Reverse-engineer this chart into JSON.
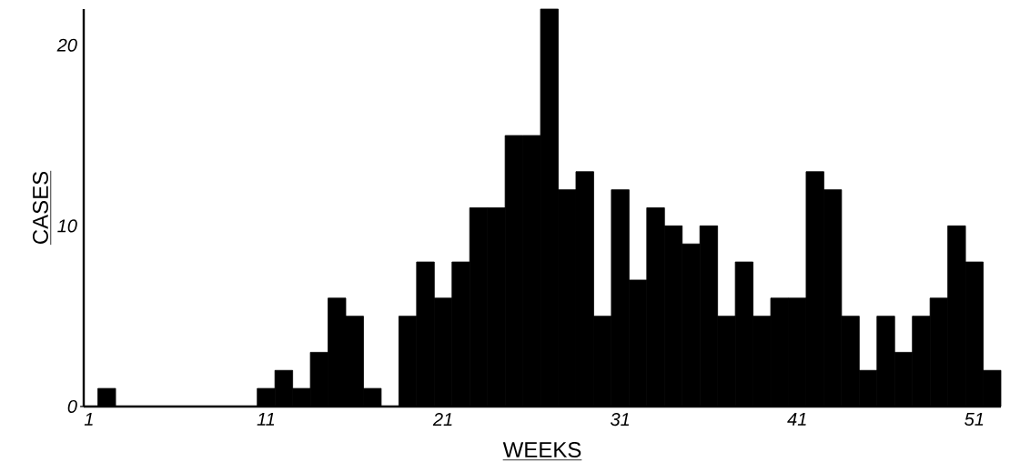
{
  "chart_data": {
    "type": "histogram",
    "xlabel": "WEEKS",
    "ylabel": "CASES",
    "bins": [
      0.5,
      1.5,
      2.5,
      3.5,
      4.5,
      5.5,
      6.5,
      7.5,
      8.5,
      9.5,
      10.5,
      11.5,
      12.5,
      13.5,
      14.5,
      15.5,
      16.5,
      17.5,
      18.5,
      19.5,
      20.5,
      21.5,
      22.5,
      23.5,
      24.5,
      25.5,
      26.5,
      27.5,
      28.5,
      29.5,
      30.5,
      31.5,
      32.5,
      33.5,
      34.5,
      35.5,
      36.5,
      37.5,
      38.5,
      39.5,
      40.5,
      41.5,
      42.5,
      43.5,
      44.5,
      45.5,
      46.5,
      47.5,
      48.5,
      49.5,
      50.5,
      51.5,
      52.5
    ],
    "values": [
      0,
      1,
      0,
      0,
      0,
      0,
      0,
      0,
      0,
      0,
      1,
      2,
      1,
      3,
      6,
      5,
      1,
      0,
      5,
      8,
      6,
      8,
      11,
      11,
      15,
      15,
      22,
      12,
      13,
      5,
      12,
      7,
      11,
      10,
      9,
      10,
      5,
      8,
      5,
      6,
      6,
      13,
      12,
      5,
      2,
      5,
      3,
      5,
      6,
      10,
      8,
      2
    ],
    "color": "#000000",
    "xlim": [
      0.7,
      52.5
    ],
    "ylim": [
      0,
      22
    ],
    "xticks": [
      1,
      11,
      21,
      31,
      41,
      51
    ],
    "yticks": [
      0,
      10,
      20
    ],
    "grid": false
  }
}
